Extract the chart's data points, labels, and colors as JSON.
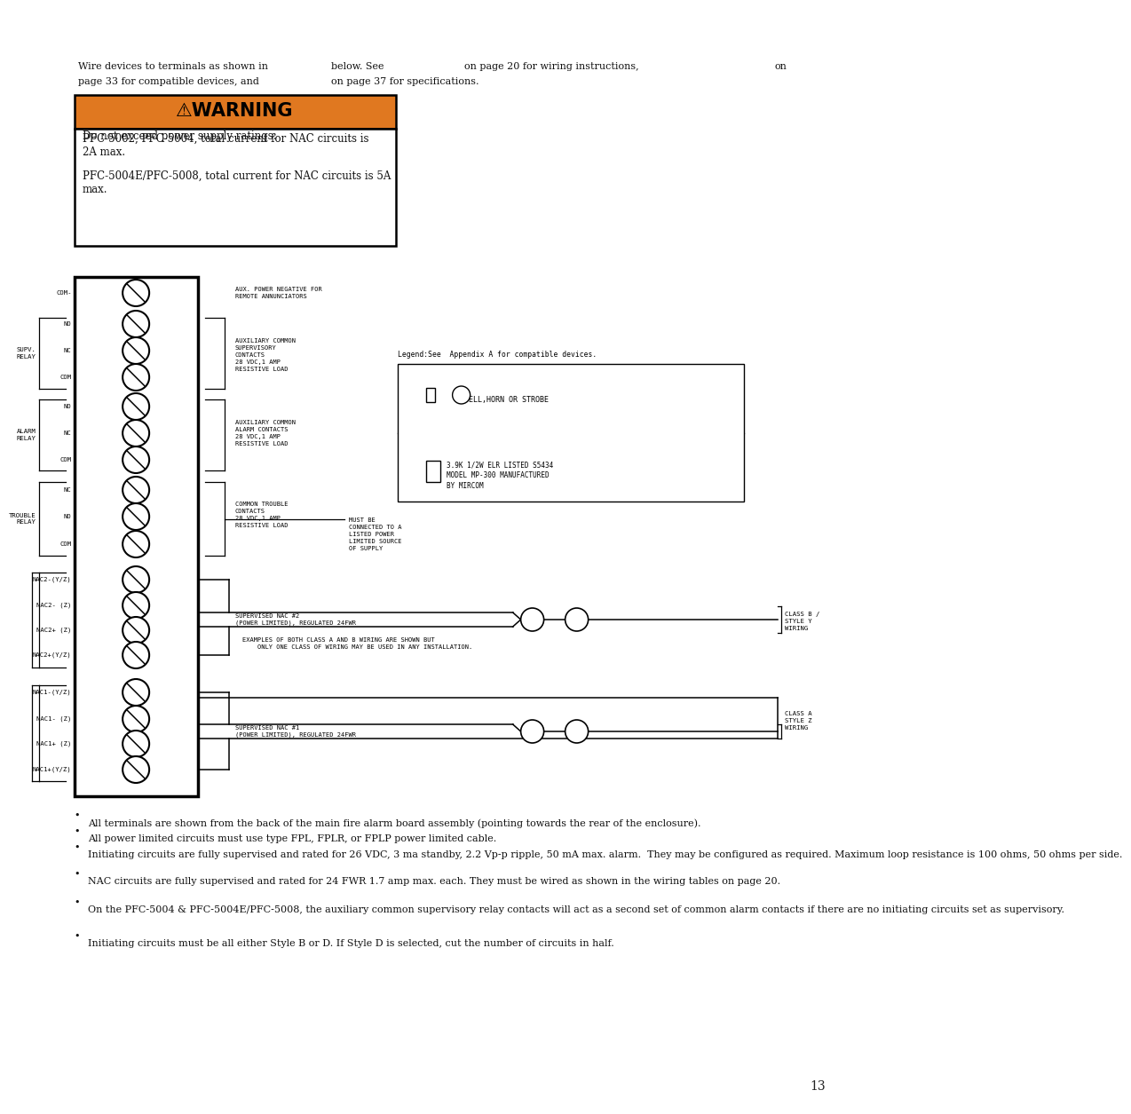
{
  "bg_color": "#ffffff",
  "warning_color": "#E07820",
  "warning_header": "⚠WARNING",
  "warning_lines": [
    "Do not exceed power supply ratings:",
    "PFC-5002, PFC-5004, total current for NAC circuits is\n2A max.",
    "PFC-5004E/PFC-5008, total current for NAC circuits is 5A\nmax."
  ],
  "bullet_points": [
    "All terminals are shown from the back of the main fire alarm board assembly (pointing towards the rear of the enclosure).",
    "All power limited circuits must use type FPL, FPLR, or FPLP power limited cable.",
    "Initiating circuits are fully supervised and rated for 26 VDC, 3 ma standby, 2.2 Vp-p ripple, 50 mA max. alarm.  They may be configured as required. Maximum loop resistance is 100 ohms, 50 ohms per side.",
    "NAC circuits are fully supervised and rated for 24 FWR 1.7 amp max. each. They must be wired as shown in the wiring tables on page 20.",
    "On the PFC-5004 & PFC-5004E/PFC-5008, the auxiliary common supervisory relay contacts will act as a second set of common alarm contacts if there are no initiating circuits set as supervisory.",
    "Initiating circuits must be all either Style B or D. If Style D is selected, cut the number of circuits in half."
  ],
  "page_num": "13"
}
